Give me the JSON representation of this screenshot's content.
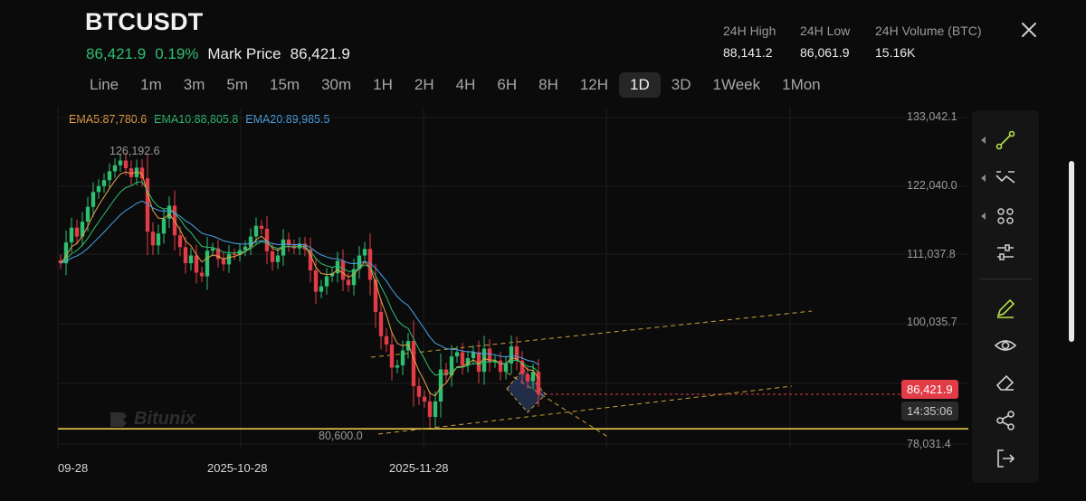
{
  "header": {
    "symbol": "BTCUSDT",
    "last_price": "86,421.9",
    "change_pct": "0.19%",
    "mark_label": "Mark Price",
    "mark_price": "86,421.9",
    "stats": [
      {
        "label": "24H High",
        "value": "88,141.2"
      },
      {
        "label": "24H Low",
        "value": "86,061.9"
      },
      {
        "label": "24H Volume (BTC)",
        "value": "15.16K"
      }
    ]
  },
  "timeframes": [
    "Line",
    "1m",
    "3m",
    "5m",
    "15m",
    "30m",
    "1H",
    "2H",
    "4H",
    "6H",
    "8H",
    "12H",
    "1D",
    "3D",
    "1Week",
    "1Mon"
  ],
  "active_timeframe": "1D",
  "ema": {
    "ema5": "EMA5:87,780.6",
    "ema10": "EMA10:88,805.8",
    "ema20": "EMA20:89,985.5",
    "colors": {
      "ema5": "#e8a34a",
      "ema10": "#2fbf71",
      "ema20": "#4aa3e8"
    }
  },
  "chart_data": {
    "type": "candlestick",
    "y_ticks": [
      "133,042.1",
      "122,040.0",
      "111,037.8",
      "100,035.7",
      "78,031.4"
    ],
    "x_ticks": [
      "09-28",
      "2025-10-28",
      "2025-11-28"
    ],
    "ylim": [
      78031.4,
      133042.1
    ],
    "high_label": "126,192.6",
    "low_label": "80,600.0",
    "current_price": "86,421.9",
    "countdown": "14:35:06",
    "support_level": 80600,
    "up_color": "#2fbf71",
    "down_color": "#e23c47",
    "closes": [
      108500,
      112000,
      114500,
      113000,
      115500,
      118000,
      120500,
      121500,
      122500,
      124000,
      125000,
      125800,
      124500,
      123000,
      124600,
      122800,
      113800,
      111500,
      113500,
      116000,
      118200,
      113200,
      111200,
      108500,
      109800,
      106900,
      106300,
      110600,
      111000,
      109200,
      108300,
      110100,
      109900,
      110700,
      111300,
      113000,
      114800,
      114300,
      110500,
      108700,
      109800,
      112500,
      111500,
      111000,
      111800,
      110800,
      107300,
      103700,
      104600,
      106300,
      106800,
      108900,
      105700,
      104800,
      107500,
      109800,
      110900,
      105700,
      100300,
      96200,
      94800,
      90900,
      91300,
      93800,
      95400,
      87800,
      86000,
      85200,
      82600,
      85200,
      90600,
      89600,
      92800,
      93500,
      91300,
      92500,
      93500,
      90200,
      94100,
      91800,
      92100,
      90200,
      91600,
      94500,
      92100,
      89800,
      88600,
      90200,
      86400
    ]
  },
  "watermark": "Bitunix"
}
